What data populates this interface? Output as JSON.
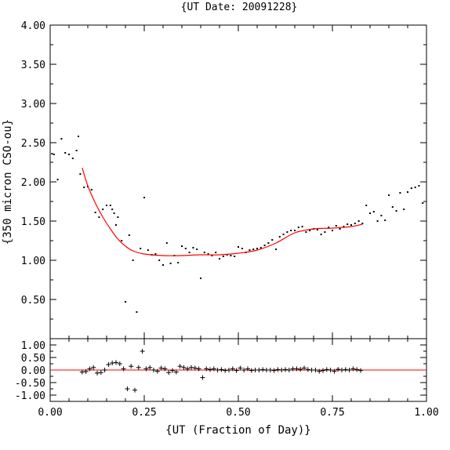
{
  "chart_data": [
    {
      "type": "scatter",
      "title": "{UT Date: 20091228}",
      "xlabel": "{UT (Fraction of Day)}",
      "ylabel": "{350 micron CSO-ou}",
      "xlim": [
        0.0,
        1.0
      ],
      "ylim": [
        0.0,
        4.0
      ],
      "yticks": [
        "0.50",
        "1.00",
        "1.50",
        "2.00",
        "2.50",
        "3.00",
        "3.50",
        "4.00"
      ],
      "grid": false,
      "legend": "none",
      "colors": {
        "points": "#000000",
        "fit": "#ff0000",
        "axes": "#000000"
      },
      "series": [
        {
          "marker": "dot",
          "x": [
            0.005,
            0.01,
            0.02,
            0.03,
            0.04,
            0.05,
            0.06,
            0.07,
            0.075,
            0.08,
            0.09,
            0.1,
            0.11,
            0.12,
            0.13,
            0.14,
            0.15,
            0.16,
            0.165,
            0.17,
            0.175,
            0.18,
            0.19,
            0.2,
            0.21,
            0.22,
            0.23,
            0.24,
            0.25,
            0.26,
            0.27,
            0.28,
            0.29,
            0.3,
            0.31,
            0.32,
            0.33,
            0.34,
            0.35,
            0.36,
            0.37,
            0.38,
            0.39,
            0.4,
            0.41,
            0.42,
            0.43,
            0.44,
            0.45,
            0.46,
            0.47,
            0.48,
            0.49,
            0.5,
            0.51,
            0.52,
            0.53,
            0.54,
            0.55,
            0.56,
            0.57,
            0.58,
            0.59,
            0.6,
            0.61,
            0.62,
            0.63,
            0.64,
            0.65,
            0.66,
            0.67,
            0.68,
            0.69,
            0.7,
            0.71,
            0.72,
            0.73,
            0.74,
            0.75,
            0.76,
            0.77,
            0.78,
            0.79,
            0.8,
            0.81,
            0.82,
            0.83,
            0.84,
            0.85,
            0.86,
            0.87,
            0.88,
            0.89,
            0.9,
            0.91,
            0.92,
            0.93,
            0.94,
            0.95,
            0.96,
            0.97,
            0.98,
            0.99
          ],
          "y": [
            2.36,
            2.35,
            2.03,
            2.55,
            2.37,
            2.35,
            2.3,
            2.4,
            2.58,
            2.1,
            1.93,
            1.94,
            1.9,
            1.61,
            1.55,
            1.65,
            1.7,
            1.7,
            1.65,
            1.6,
            1.45,
            1.55,
            1.25,
            0.47,
            1.32,
            1.0,
            0.34,
            1.15,
            1.8,
            1.13,
            1.07,
            1.08,
            1.0,
            0.94,
            1.22,
            0.96,
            1.06,
            0.97,
            1.18,
            1.15,
            1.1,
            1.16,
            1.14,
            0.77,
            1.1,
            1.08,
            1.06,
            1.1,
            1.02,
            1.05,
            1.07,
            1.06,
            1.05,
            1.17,
            1.15,
            1.1,
            1.13,
            1.14,
            1.15,
            1.16,
            1.19,
            1.22,
            1.26,
            1.14,
            1.3,
            1.33,
            1.36,
            1.38,
            1.38,
            1.42,
            1.43,
            1.36,
            1.38,
            1.4,
            1.39,
            1.33,
            1.36,
            1.42,
            1.38,
            1.44,
            1.4,
            1.43,
            1.46,
            1.45,
            1.47,
            1.5,
            1.47,
            1.7,
            1.6,
            1.62,
            1.5,
            1.57,
            1.51,
            1.83,
            1.68,
            1.63,
            1.86,
            1.65,
            1.87,
            1.92,
            1.93,
            1.95,
            1.73
          ]
        },
        {
          "marker": "line",
          "x": [
            0.085,
            0.1,
            0.12,
            0.14,
            0.16,
            0.18,
            0.2,
            0.22,
            0.25,
            0.3,
            0.35,
            0.4,
            0.45,
            0.5,
            0.55,
            0.6,
            0.65,
            0.7,
            0.75,
            0.8,
            0.83
          ],
          "y": [
            2.18,
            1.95,
            1.73,
            1.55,
            1.4,
            1.27,
            1.18,
            1.12,
            1.08,
            1.06,
            1.06,
            1.07,
            1.07,
            1.09,
            1.13,
            1.22,
            1.35,
            1.4,
            1.41,
            1.43,
            1.46
          ]
        }
      ]
    },
    {
      "type": "scatter",
      "xlabel": "{UT (Fraction of Day)}",
      "ylabel": "",
      "xlim": [
        0.0,
        1.0
      ],
      "ylim": [
        -1.25,
        1.25
      ],
      "xticks": [
        "0.00",
        "0.25",
        "0.50",
        "0.75",
        "1.00"
      ],
      "yticks": [
        "1.00",
        "0.50",
        "0.00",
        "-0.50",
        "-1.00"
      ],
      "grid": false,
      "legend": "none",
      "series": [
        {
          "marker": "plus",
          "x": [
            0.085,
            0.095,
            0.105,
            0.115,
            0.125,
            0.135,
            0.145,
            0.155,
            0.165,
            0.175,
            0.185,
            0.195,
            0.205,
            0.215,
            0.225,
            0.235,
            0.245,
            0.255,
            0.265,
            0.275,
            0.285,
            0.295,
            0.305,
            0.315,
            0.325,
            0.335,
            0.345,
            0.355,
            0.365,
            0.375,
            0.385,
            0.395,
            0.405,
            0.415,
            0.425,
            0.435,
            0.445,
            0.455,
            0.465,
            0.475,
            0.485,
            0.495,
            0.505,
            0.515,
            0.525,
            0.535,
            0.545,
            0.555,
            0.565,
            0.575,
            0.585,
            0.595,
            0.605,
            0.615,
            0.625,
            0.635,
            0.645,
            0.655,
            0.665,
            0.675,
            0.685,
            0.695,
            0.705,
            0.715,
            0.725,
            0.735,
            0.745,
            0.755,
            0.765,
            0.775,
            0.785,
            0.795,
            0.805,
            0.815,
            0.825
          ],
          "y": [
            -0.08,
            -0.06,
            0.05,
            0.1,
            -0.12,
            -0.1,
            0.0,
            0.22,
            0.28,
            0.3,
            0.25,
            0.05,
            -0.75,
            0.15,
            -0.8,
            0.1,
            0.75,
            0.05,
            0.1,
            0.0,
            -0.05,
            0.08,
            0.05,
            -0.1,
            -0.02,
            -0.08,
            0.15,
            0.1,
            0.05,
            0.1,
            0.08,
            0.05,
            -0.3,
            0.05,
            0.02,
            0.05,
            0.0,
            0.02,
            -0.02,
            0.0,
            0.05,
            -0.02,
            0.08,
            0.0,
            0.05,
            -0.02,
            0.0,
            0.0,
            0.02,
            0.0,
            0.0,
            -0.02,
            0.02,
            0.0,
            0.02,
            0.0,
            0.05,
            0.05,
            0.03,
            0.08,
            0.02,
            0.0,
            0.0,
            -0.05,
            -0.02,
            0.02,
            0.0,
            -0.05,
            0.03,
            0.0,
            0.02,
            0.0,
            0.05,
            0.02,
            -0.02
          ]
        }
      ],
      "reference_line": {
        "y": 0.0,
        "color": "#ff0000"
      }
    }
  ]
}
